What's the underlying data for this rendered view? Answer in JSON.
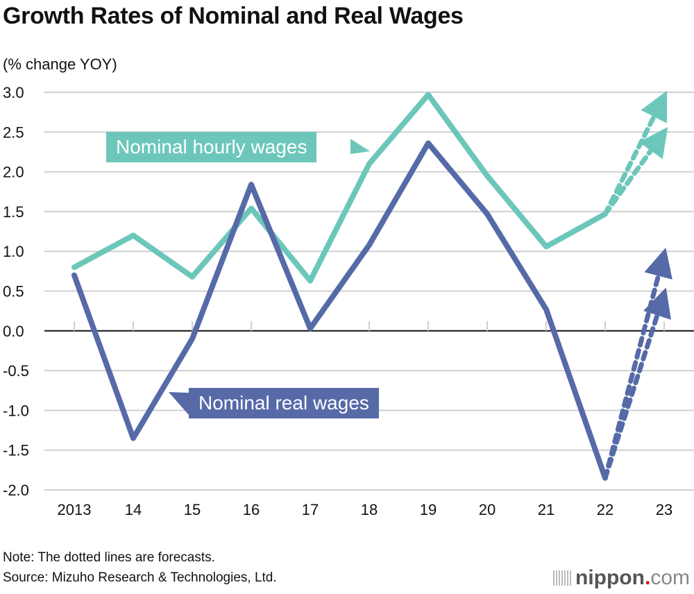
{
  "title": "Growth Rates of Nominal and Real Wages",
  "unit_label": "(% change YOY)",
  "note": "Note: The dotted lines are forecasts.",
  "source": "Source: Mizuho Research & Technologies, Ltd.",
  "logo": {
    "brand": "nippon",
    "dot": ".",
    "tld": "com"
  },
  "chart_data": {
    "type": "line",
    "title": "Growth Rates of Nominal and Real Wages",
    "xlabel": "",
    "ylabel": "(% change YOY)",
    "categories": [
      "2013",
      "14",
      "15",
      "16",
      "17",
      "18",
      "19",
      "20",
      "21",
      "22",
      "23"
    ],
    "y_ticks": [
      "3.0",
      "2.5",
      "2.0",
      "1.5",
      "1.0",
      "0.5",
      "0.0",
      "-0.5",
      "-1.0",
      "-1.5",
      "-2.0"
    ],
    "ylim": [
      -2.0,
      3.0
    ],
    "grid": true,
    "series": [
      {
        "name": "Nominal hourly wages",
        "color": "#6cc7ba",
        "values": [
          0.8,
          1.2,
          0.68,
          1.54,
          0.63,
          2.1,
          2.97,
          1.95,
          1.06,
          1.47,
          null
        ],
        "forecasts": [
          {
            "from": "22",
            "to": "23",
            "value": 2.95
          },
          {
            "from": "22",
            "to": "23",
            "value": 2.5
          }
        ]
      },
      {
        "name": "Nominal real wages",
        "color": "#566aa8",
        "values": [
          0.7,
          -1.35,
          -0.1,
          1.84,
          0.03,
          1.08,
          2.36,
          1.47,
          0.27,
          -1.85,
          null
        ],
        "forecasts": [
          {
            "from": "22",
            "to": "23",
            "value": 0.97
          },
          {
            "from": "22",
            "to": "23",
            "value": 0.47
          }
        ]
      }
    ],
    "annotations": [
      {
        "text": "Nominal hourly wages",
        "series": "Nominal hourly wages",
        "color": "#6cc7ba"
      },
      {
        "text": "Nominal real wages",
        "series": "Nominal real wages",
        "color": "#566aa8"
      }
    ],
    "legend": "inline-labels"
  }
}
